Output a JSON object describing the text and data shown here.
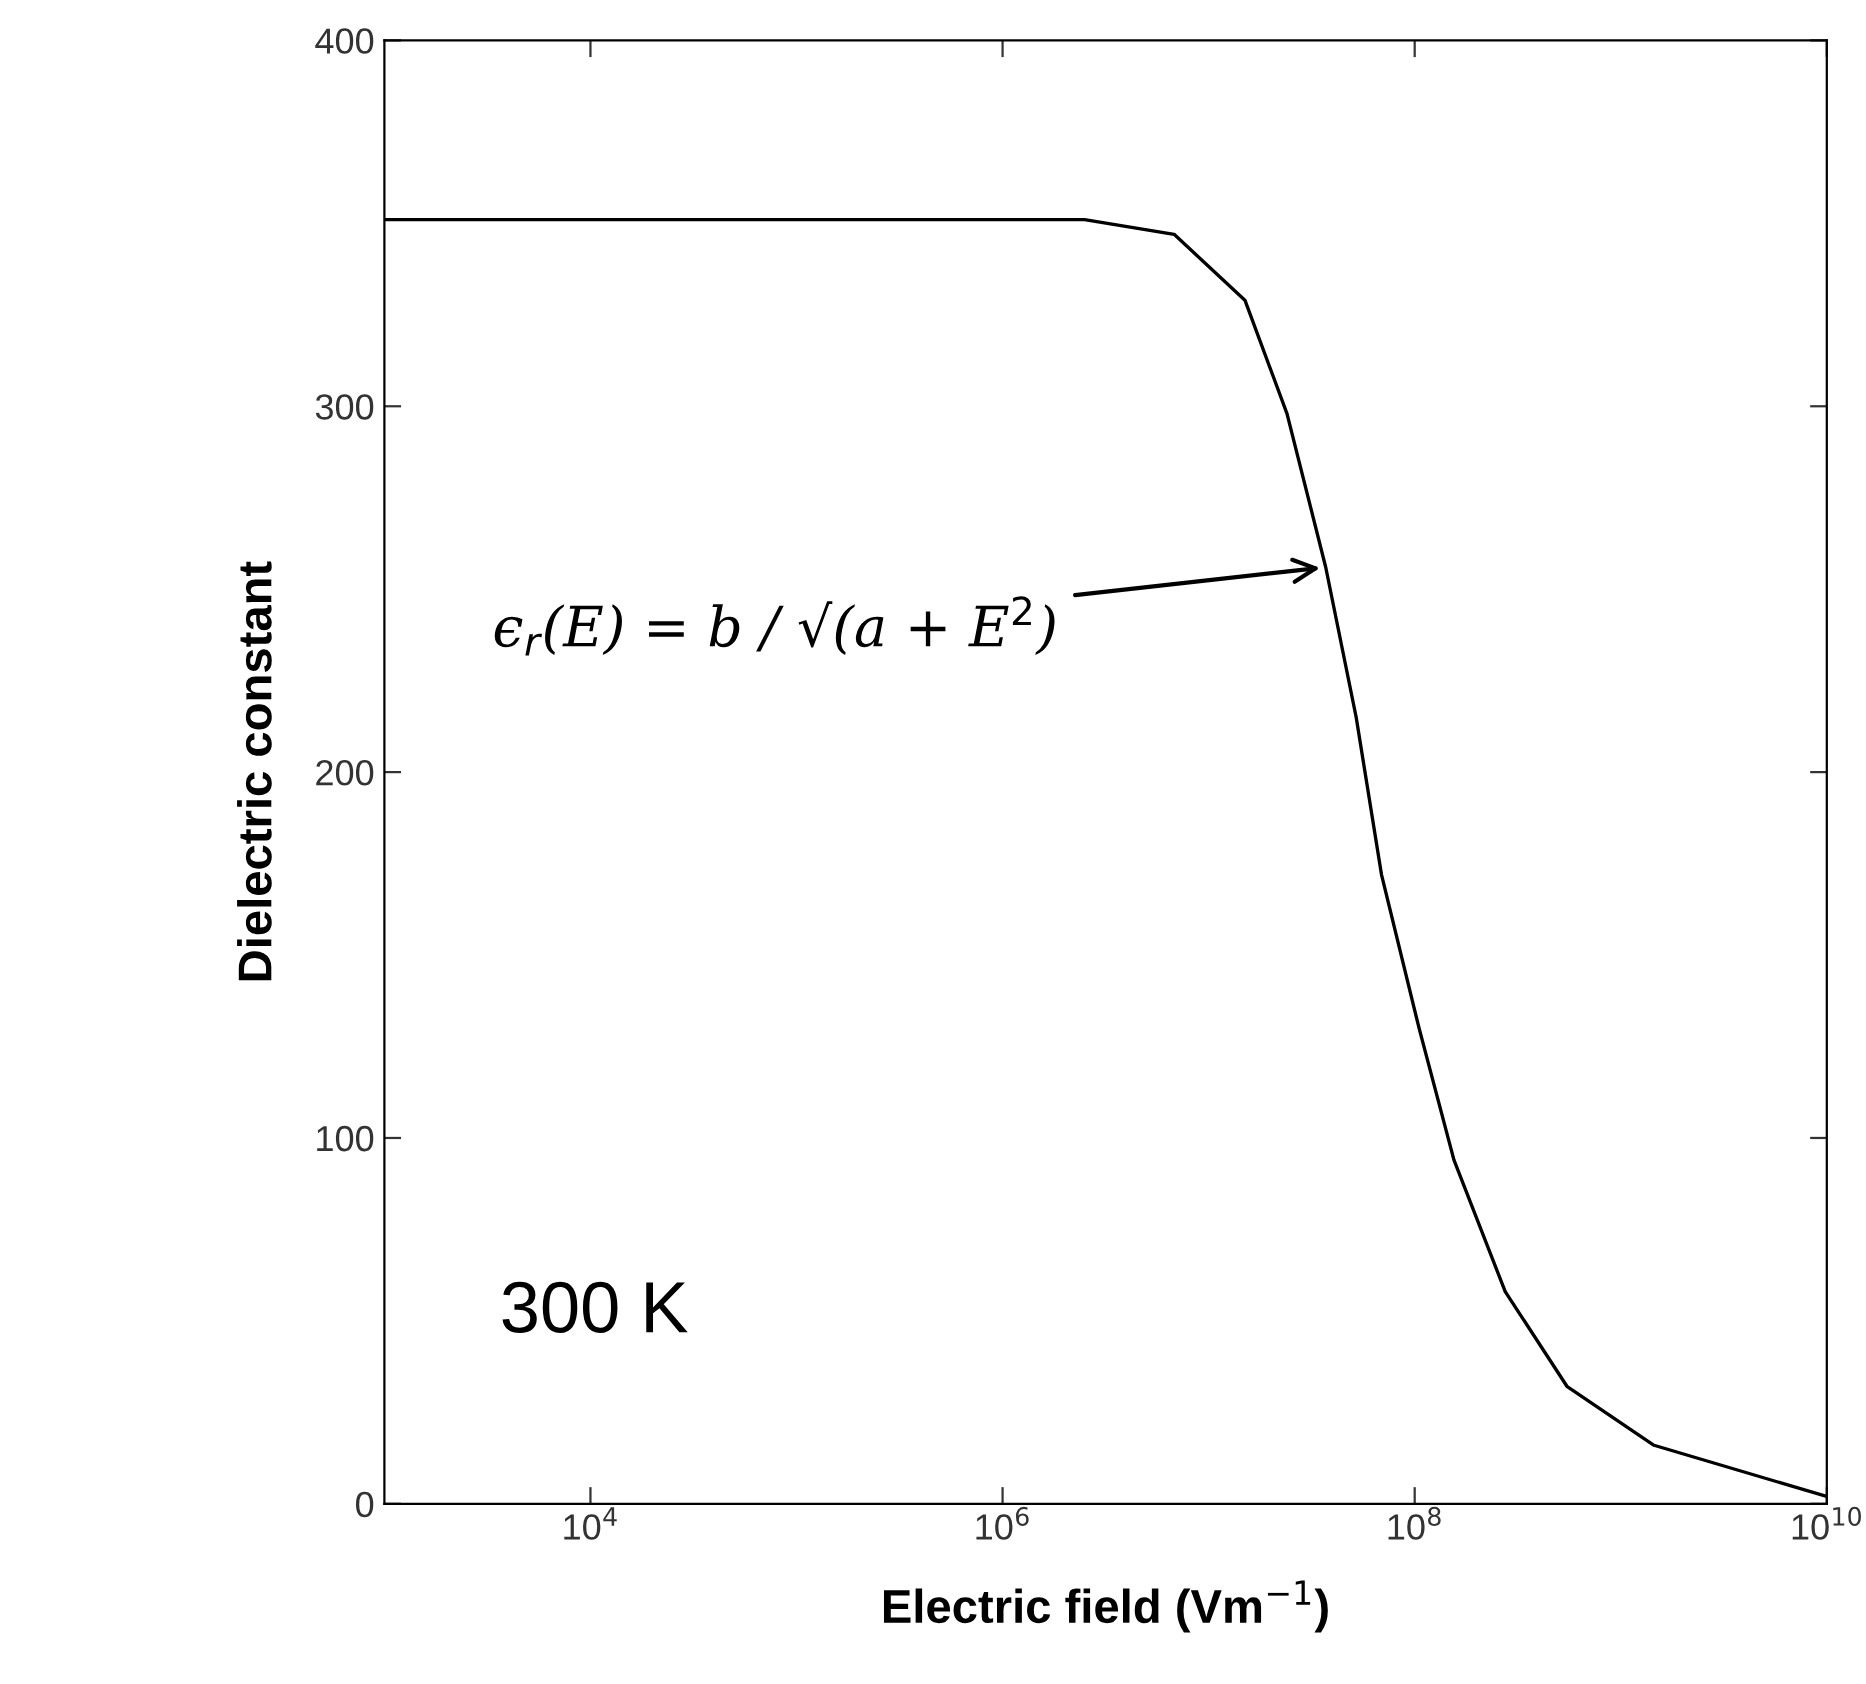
{
  "chart_data": {
    "type": "line",
    "xlabel": "Electric field (Vm$^{−1}$)",
    "ylabel": "Dielectric constant",
    "log": "x",
    "xlim": [
      1000,
      10000000000
    ],
    "ylim": [
      0,
      400
    ],
    "xticks": [
      {
        "value": 10000,
        "label": "10$^{4}$"
      },
      {
        "value": 1000000,
        "label": "10$^{6}$"
      },
      {
        "value": 100000000,
        "label": "10$^{8}$"
      },
      {
        "value": 10000000000,
        "label": "10$^{10}$"
      }
    ],
    "yticks": [
      0,
      100,
      200,
      300,
      400
    ],
    "grid": false,
    "marker": "none",
    "line_style": "solid",
    "series": [
      {
        "color": "#000000",
        "x": [
          1000,
          100000,
          1000000,
          2500000,
          6800000,
          15000000,
          24000000,
          37000000,
          52000000,
          69000000,
          105000000,
          155000000,
          275000000,
          550000000,
          1450000000,
          10000000000
        ],
        "values": [
          351,
          351,
          351,
          351,
          347,
          329,
          298,
          256,
          215,
          172,
          130,
          94,
          58,
          32,
          16,
          2
        ]
      }
    ],
    "annotations": [
      {
        "text": "ϵ$_{r}$(E) = b / √(a + E$^{2}$)",
        "x": 37000000,
        "y": 256
      },
      "300 K"
    ]
  }
}
